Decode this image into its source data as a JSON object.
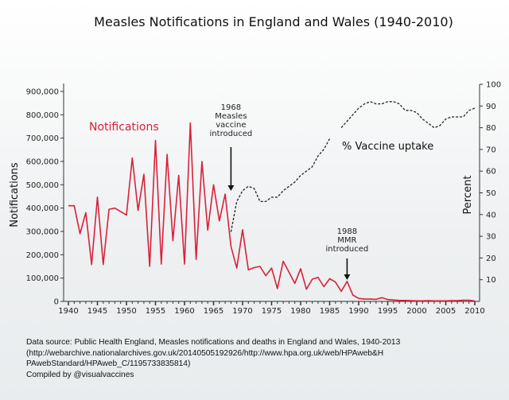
{
  "chart_data": {
    "type": "line",
    "title": "Measles Notifications in England and Wales (1940-2010)",
    "xlabel": "",
    "ylabel": "Notifications",
    "y2label": "Percent",
    "xlim": [
      1940,
      2010
    ],
    "ylim": [
      0,
      900000
    ],
    "y2lim": [
      0,
      100
    ],
    "xticks": [
      1940,
      1945,
      1950,
      1955,
      1960,
      1965,
      1970,
      1975,
      1980,
      1985,
      1990,
      1995,
      2000,
      2005,
      2010
    ],
    "yticks": [
      "0",
      "100,000",
      "200,000",
      "300,000",
      "400,000",
      "500,000",
      "600,000",
      "700,000",
      "800,000",
      "900,000"
    ],
    "y2ticks": [
      "10",
      "20",
      "30",
      "40",
      "50",
      "60",
      "70",
      "80",
      "90",
      "100"
    ],
    "grid": false,
    "colors": {
      "notifications": "#d8213b",
      "uptake": "#222222"
    },
    "series": [
      {
        "name": "Notifications",
        "axis": "left",
        "x": [
          1940,
          1941,
          1942,
          1943,
          1944,
          1945,
          1946,
          1947,
          1948,
          1949,
          1950,
          1951,
          1952,
          1953,
          1954,
          1955,
          1956,
          1957,
          1958,
          1959,
          1960,
          1961,
          1962,
          1963,
          1964,
          1965,
          1966,
          1967,
          1968,
          1969,
          1970,
          1971,
          1972,
          1973,
          1974,
          1975,
          1976,
          1977,
          1978,
          1979,
          1980,
          1981,
          1982,
          1983,
          1984,
          1985,
          1986,
          1987,
          1988,
          1989,
          1990,
          1991,
          1992,
          1993,
          1994,
          1995,
          1996,
          1997,
          1998,
          1999,
          2000,
          2001,
          2002,
          2003,
          2004,
          2005,
          2006,
          2007,
          2008,
          2009,
          2010
        ],
        "values": [
          410000,
          410000,
          290000,
          380000,
          158000,
          447000,
          158000,
          395000,
          400000,
          385000,
          370000,
          615000,
          390000,
          545000,
          150000,
          690000,
          160000,
          630000,
          260000,
          540000,
          160000,
          765000,
          180000,
          600000,
          305000,
          500000,
          345000,
          460000,
          236000,
          143000,
          307000,
          135000,
          145000,
          150000,
          110000,
          143000,
          55000,
          172000,
          125000,
          77000,
          140000,
          52000,
          95000,
          103000,
          63000,
          97000,
          83000,
          43000,
          86000,
          27000,
          13000,
          10000,
          10000,
          9000,
          16000,
          8000,
          6000,
          4000,
          4000,
          3000,
          2500,
          2500,
          3000,
          2500,
          2500,
          2500,
          3000,
          3000,
          5000,
          5000,
          2000
        ]
      },
      {
        "name": "% Vaccine uptake",
        "axis": "right",
        "x": [
          1968,
          1969,
          1970,
          1971,
          1972,
          1973,
          1974,
          1975,
          1976,
          1977,
          1978,
          1979,
          1980,
          1981,
          1982,
          1983,
          1984,
          1985,
          1986,
          1987,
          1988,
          1989,
          1990,
          1991,
          1992,
          1993,
          1994,
          1995,
          1996,
          1997,
          1998,
          1999,
          2000,
          2001,
          2002,
          2003,
          2004,
          2005,
          2006,
          2007,
          2008,
          2009,
          2010
        ],
        "values": [
          32,
          46,
          51,
          53,
          52,
          46,
          46,
          48,
          48,
          51,
          53,
          55,
          58,
          60,
          62,
          67,
          70,
          75,
          null,
          80,
          83,
          86,
          89,
          91,
          92,
          91,
          91,
          92,
          92,
          91,
          88,
          88,
          87,
          84,
          82,
          80,
          81,
          84,
          85,
          85,
          85,
          88,
          89
        ]
      }
    ],
    "annotations": [
      {
        "year": 1968,
        "lines": [
          "1968",
          "Measles",
          "vaccine",
          "introduced"
        ]
      },
      {
        "year": 1988,
        "lines": [
          "1988",
          "MMR",
          "introduced"
        ]
      }
    ]
  },
  "source": {
    "lines": [
      "Data source: Public Health England, Measles notifications and deaths in England and Wales, 1940-2013",
      "(http://webarchive.nationalarchives.gov.uk/20140505192926/http://www.hpa.org.uk/web/HPAweb&H",
      "PAwebStandard/HPAweb_C/1195733835814)",
      "Compiled by @visualvaccines"
    ]
  }
}
